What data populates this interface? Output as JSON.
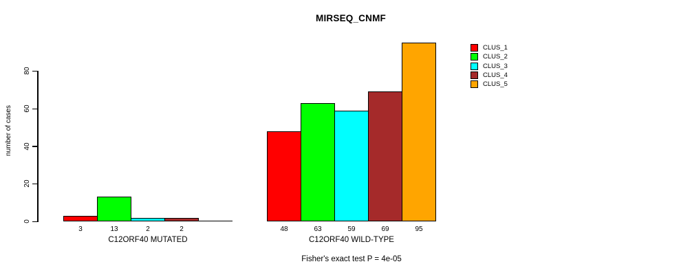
{
  "chart_data": {
    "type": "bar",
    "title": "MIRSEQ_CNMF",
    "ylabel": "number of cases",
    "categories": [
      "C12ORF40 MUTATED",
      "C12ORF40 WILD-TYPE"
    ],
    "series": [
      {
        "name": "CLUS_1",
        "color": "#FF0000",
        "values": [
          3,
          48
        ]
      },
      {
        "name": "CLUS_2",
        "color": "#00FF00",
        "values": [
          13,
          63
        ]
      },
      {
        "name": "CLUS_3",
        "color": "#00FFFF",
        "values": [
          2,
          59
        ]
      },
      {
        "name": "CLUS_4",
        "color": "#A52A2A",
        "values": [
          2,
          69
        ]
      },
      {
        "name": "CLUS_5",
        "color": "#FFA500",
        "values": [
          0,
          95
        ]
      }
    ],
    "bar_value_labels": [
      [
        "3",
        "13",
        "2",
        "2",
        ""
      ],
      [
        "48",
        "63",
        "59",
        "69",
        "95"
      ]
    ],
    "yticks": [
      0,
      20,
      40,
      60,
      80
    ],
    "ylim": [
      0,
      97
    ],
    "grid": false,
    "legend_position": "right-outside",
    "bar_border_color": "#000000",
    "annotation": "Fisher's exact test P = 4e-05"
  }
}
